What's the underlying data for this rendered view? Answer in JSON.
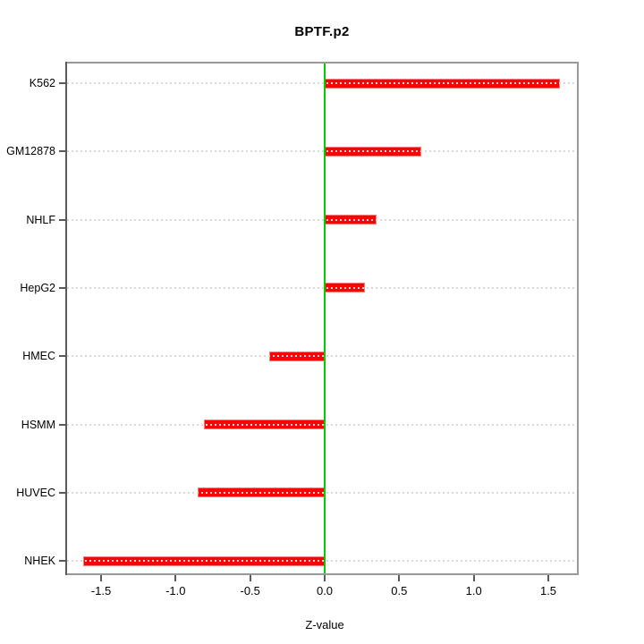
{
  "chart_data": {
    "type": "bar",
    "orientation": "horizontal",
    "title": "BPTF.p2",
    "xlabel": "Z-value",
    "categories": [
      "K562",
      "GM12878",
      "NHLF",
      "HepG2",
      "HMEC",
      "HSMM",
      "HUVEC",
      "NHEK"
    ],
    "values": [
      1.58,
      0.65,
      0.35,
      0.27,
      -0.37,
      -0.81,
      -0.85,
      -1.62
    ],
    "x_ticks": [
      -1.5,
      -1.0,
      -0.5,
      0.0,
      0.5,
      1.0,
      1.5
    ],
    "x_tick_labels": [
      "-1.5",
      "-1.0",
      "-0.5",
      "0.0",
      "0.5",
      "1.0",
      "1.5"
    ],
    "xlim": [
      -1.74,
      1.7
    ],
    "grid": "dotted horizontal line per category, full plot width",
    "zero_line_at": 0.0,
    "legend": "none",
    "colors": {
      "bar": "#ff0000",
      "bar_edge": "#ff7a7a",
      "zero_line": "#00cc00",
      "grid": "#d9d9d9",
      "frame": "#999999",
      "axis": "#5a5a5a",
      "text": "#000000",
      "background": "#ffffff"
    }
  }
}
